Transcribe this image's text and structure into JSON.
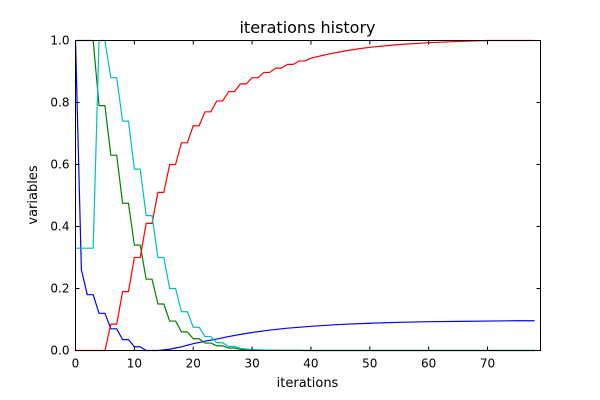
{
  "chart_data": {
    "type": "line",
    "title": "iterations history",
    "xlabel": "iterations",
    "ylabel": "variables",
    "xlim": [
      0,
      79
    ],
    "ylim": [
      0,
      1
    ],
    "xticks": [
      "0",
      "10",
      "20",
      "30",
      "40",
      "50",
      "60",
      "70"
    ],
    "yticks": [
      "0.0",
      "0.2",
      "0.4",
      "0.6",
      "0.8",
      "1.0"
    ],
    "grid": false,
    "legend": "none",
    "series": [
      {
        "color": "#0000ff",
        "points": [
          [
            0,
            1.0
          ],
          [
            1,
            0.26
          ],
          [
            2,
            0.18
          ],
          [
            3,
            0.18
          ],
          [
            4,
            0.12
          ],
          [
            5,
            0.12
          ],
          [
            6,
            0.07
          ],
          [
            7,
            0.07
          ],
          [
            8,
            0.035
          ],
          [
            9,
            0.035
          ],
          [
            10,
            0.012
          ],
          [
            11,
            0.012
          ],
          [
            12,
            0.0
          ],
          [
            13,
            0.0
          ],
          [
            14,
            0.0
          ],
          [
            15,
            0.002
          ],
          [
            16,
            0.004
          ],
          [
            17,
            0.008
          ],
          [
            18,
            0.012
          ],
          [
            19,
            0.017
          ],
          [
            20,
            0.022
          ],
          [
            22,
            0.03
          ],
          [
            24,
            0.037
          ],
          [
            26,
            0.045
          ],
          [
            28,
            0.052
          ],
          [
            30,
            0.058
          ],
          [
            33,
            0.066
          ],
          [
            36,
            0.072
          ],
          [
            40,
            0.078
          ],
          [
            45,
            0.084
          ],
          [
            50,
            0.088
          ],
          [
            55,
            0.091
          ],
          [
            60,
            0.093
          ],
          [
            65,
            0.094
          ],
          [
            70,
            0.095
          ],
          [
            75,
            0.096
          ],
          [
            78,
            0.096
          ]
        ]
      },
      {
        "color": "#008000",
        "points": [
          [
            0,
            1.0
          ],
          [
            1,
            1.0
          ],
          [
            2,
            1.0
          ],
          [
            3,
            1.0
          ],
          [
            4,
            0.79
          ],
          [
            5,
            0.79
          ],
          [
            6,
            0.63
          ],
          [
            7,
            0.63
          ],
          [
            8,
            0.475
          ],
          [
            9,
            0.475
          ],
          [
            10,
            0.34
          ],
          [
            11,
            0.34
          ],
          [
            12,
            0.23
          ],
          [
            13,
            0.23
          ],
          [
            14,
            0.15
          ],
          [
            15,
            0.15
          ],
          [
            16,
            0.095
          ],
          [
            17,
            0.095
          ],
          [
            18,
            0.06
          ],
          [
            19,
            0.06
          ],
          [
            20,
            0.038
          ],
          [
            21,
            0.038
          ],
          [
            22,
            0.024
          ],
          [
            23,
            0.024
          ],
          [
            24,
            0.015
          ],
          [
            25,
            0.015
          ],
          [
            26,
            0.008
          ],
          [
            27,
            0.008
          ],
          [
            28,
            0.004
          ],
          [
            30,
            0.002
          ],
          [
            33,
            0.001
          ],
          [
            40,
            0.0
          ],
          [
            78,
            0.0
          ]
        ]
      },
      {
        "color": "#ff0000",
        "points": [
          [
            0,
            0.0
          ],
          [
            4,
            0.0
          ],
          [
            5,
            0.0
          ],
          [
            6,
            0.085
          ],
          [
            7,
            0.085
          ],
          [
            8,
            0.19
          ],
          [
            9,
            0.19
          ],
          [
            10,
            0.3
          ],
          [
            11,
            0.3
          ],
          [
            12,
            0.41
          ],
          [
            13,
            0.41
          ],
          [
            14,
            0.51
          ],
          [
            15,
            0.51
          ],
          [
            16,
            0.6
          ],
          [
            17,
            0.6
          ],
          [
            18,
            0.67
          ],
          [
            19,
            0.67
          ],
          [
            20,
            0.725
          ],
          [
            21,
            0.725
          ],
          [
            22,
            0.77
          ],
          [
            23,
            0.77
          ],
          [
            24,
            0.805
          ],
          [
            25,
            0.805
          ],
          [
            26,
            0.835
          ],
          [
            27,
            0.835
          ],
          [
            28,
            0.86
          ],
          [
            29,
            0.86
          ],
          [
            30,
            0.88
          ],
          [
            31,
            0.88
          ],
          [
            32,
            0.897
          ],
          [
            33,
            0.897
          ],
          [
            34,
            0.911
          ],
          [
            35,
            0.911
          ],
          [
            36,
            0.923
          ],
          [
            37,
            0.923
          ],
          [
            38,
            0.934
          ],
          [
            39,
            0.934
          ],
          [
            40,
            0.943
          ],
          [
            42,
            0.952
          ],
          [
            44,
            0.96
          ],
          [
            46,
            0.967
          ],
          [
            48,
            0.973
          ],
          [
            50,
            0.978
          ],
          [
            55,
            0.987
          ],
          [
            60,
            0.993
          ],
          [
            65,
            0.997
          ],
          [
            70,
            1.0
          ],
          [
            78,
            1.0
          ]
        ]
      },
      {
        "color": "#00bfbf",
        "points": [
          [
            0,
            0.33
          ],
          [
            1,
            0.33
          ],
          [
            2,
            0.33
          ],
          [
            3,
            0.33
          ],
          [
            4,
            1.0
          ],
          [
            5,
            1.0
          ],
          [
            6,
            0.88
          ],
          [
            7,
            0.88
          ],
          [
            8,
            0.74
          ],
          [
            9,
            0.74
          ],
          [
            10,
            0.585
          ],
          [
            11,
            0.585
          ],
          [
            12,
            0.435
          ],
          [
            13,
            0.435
          ],
          [
            14,
            0.3
          ],
          [
            15,
            0.3
          ],
          [
            16,
            0.2
          ],
          [
            17,
            0.2
          ],
          [
            18,
            0.125
          ],
          [
            19,
            0.125
          ],
          [
            20,
            0.075
          ],
          [
            21,
            0.075
          ],
          [
            22,
            0.045
          ],
          [
            23,
            0.045
          ],
          [
            24,
            0.025
          ],
          [
            25,
            0.025
          ],
          [
            26,
            0.013
          ],
          [
            27,
            0.013
          ],
          [
            28,
            0.007
          ],
          [
            30,
            0.003
          ],
          [
            33,
            0.001
          ],
          [
            40,
            0.0
          ],
          [
            78,
            0.0
          ]
        ]
      }
    ]
  }
}
